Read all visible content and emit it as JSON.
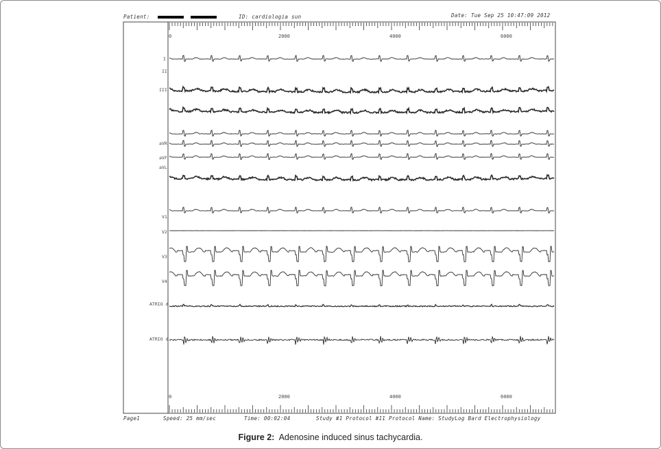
{
  "header": {
    "patient_label": "Patient: ",
    "id_text": "ID: cardiologia sun",
    "date_text": "Date: Tue Sep 25 10:47:09 2012"
  },
  "ruler": {
    "ticks": [
      "0",
      "2000",
      "4000",
      "6000"
    ]
  },
  "leads": [
    {
      "label": "I",
      "kind": "thin"
    },
    {
      "label": "II",
      "kind": "thin"
    },
    {
      "label": "III",
      "kind": "noisy"
    },
    {
      "label": "",
      "kind": "noisy"
    },
    {
      "label": "",
      "kind": "thin"
    },
    {
      "label": "aVR",
      "kind": "thin"
    },
    {
      "label": "aVF",
      "kind": "thin"
    },
    {
      "label": "aVL",
      "kind": "noisy"
    },
    {
      "label": "V1",
      "kind": "thin"
    },
    {
      "label": "V2",
      "kind": "flat"
    },
    {
      "label": "V3",
      "kind": "big"
    },
    {
      "label": "V4",
      "kind": "big"
    },
    {
      "label": "ATRIO d",
      "kind": "flat-noisy"
    },
    {
      "label": "ATRIO d",
      "kind": "atrial"
    }
  ],
  "footer": {
    "page": "Page1",
    "speed": "Speed: 25 mm/sec",
    "time": "Time: 00:02:04",
    "study": "Study #1  Protocol #11  Protocol Name: StudyLog  Bard Electrophysiology"
  },
  "caption": {
    "label": "Figure 2:",
    "text": "Adenosine induced sinus tachycardia."
  }
}
